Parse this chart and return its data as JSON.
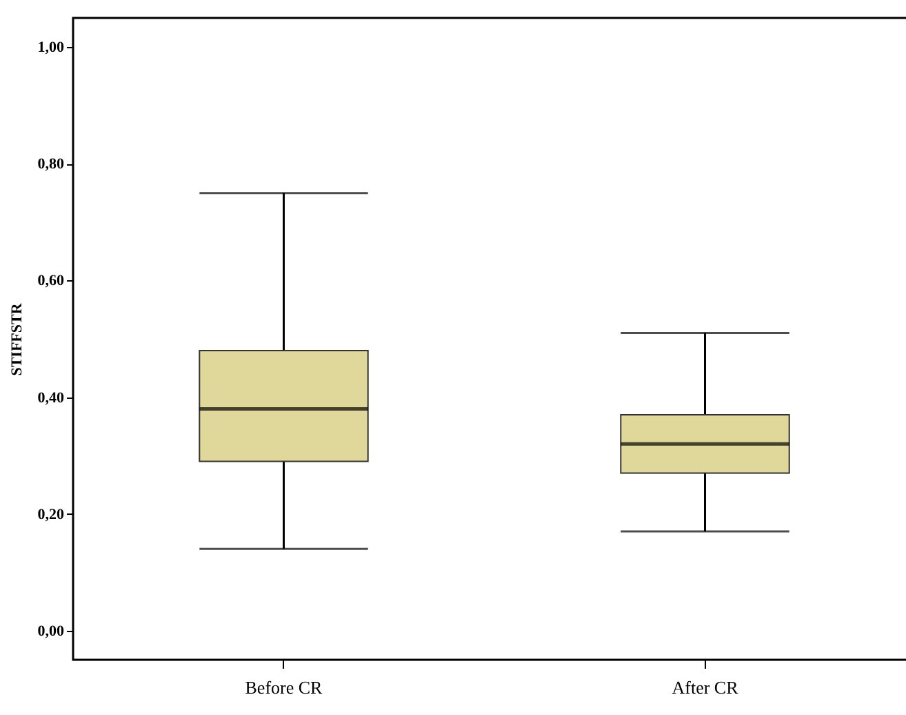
{
  "chart_data": {
    "type": "box",
    "ylabel": "STIFFSTR",
    "categories": [
      "Before CR",
      "After CR"
    ],
    "boxes": [
      {
        "low": 0.14,
        "q1": 0.29,
        "median": 0.38,
        "q3": 0.48,
        "high": 0.75
      },
      {
        "low": 0.17,
        "q1": 0.27,
        "median": 0.32,
        "q3": 0.37,
        "high": 0.51
      }
    ],
    "color": "#e0d89a",
    "ylim": [
      -0.05,
      1.05
    ],
    "yticks": [
      {
        "value": 0,
        "label": "0,00"
      },
      {
        "value": 0.2,
        "label": "0,20"
      },
      {
        "value": 0.4,
        "label": "0,40"
      },
      {
        "value": 0.6,
        "label": "0,60"
      },
      {
        "value": 0.8,
        "label": "0,80"
      },
      {
        "value": 1,
        "label": "1,00"
      }
    ]
  }
}
